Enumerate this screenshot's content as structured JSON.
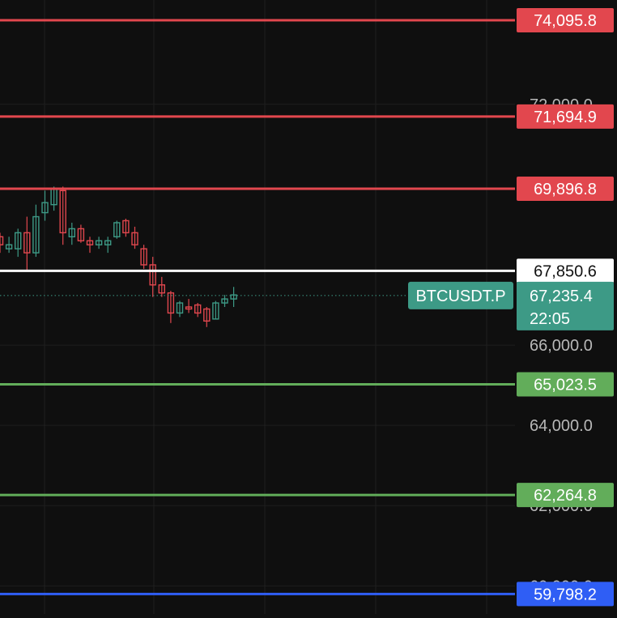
{
  "chart_data": {
    "type": "candlestick",
    "symbol": "BTCUSDT.P",
    "ylim": [
      59300,
      74600
    ],
    "grid": true,
    "y_ticks": [
      "72,000.0",
      "66,000.0",
      "64,000.0",
      "62,000.0",
      "60,000.0"
    ],
    "y_tick_values": [
      72000,
      66000,
      64000,
      62000,
      60000
    ],
    "last_price": "67,235.4",
    "last_price_value": 67235.4,
    "countdown": "22:05",
    "levels": [
      {
        "label": "74,095.8",
        "value": 74095.8,
        "color": "#e2474e",
        "text_color": "#ffffff"
      },
      {
        "label": "71,694.9",
        "value": 71694.9,
        "color": "#e2474e",
        "text_color": "#ffffff"
      },
      {
        "label": "69,896.8",
        "value": 69896.8,
        "color": "#e2474e",
        "text_color": "#ffffff"
      },
      {
        "label": "67,850.6",
        "value": 67850.6,
        "color": "#ffffff",
        "text_color": "#111111"
      },
      {
        "label": "65,023.5",
        "value": 65023.5,
        "color": "#62ad5a",
        "text_color": "#ffffff"
      },
      {
        "label": "62,264.8",
        "value": 62264.8,
        "color": "#62ad5a",
        "text_color": "#ffffff"
      },
      {
        "label": "59,798.2",
        "value": 59798.2,
        "color": "#2f5ef5",
        "text_color": "#ffffff"
      }
    ],
    "candles": [
      {
        "o": 68700,
        "h": 68800,
        "l": 68300,
        "c": 68500
      },
      {
        "o": 68400,
        "h": 68700,
        "l": 68300,
        "c": 68500
      },
      {
        "o": 68400,
        "h": 68900,
        "l": 68200,
        "c": 68800
      },
      {
        "o": 68800,
        "h": 69200,
        "l": 67850,
        "c": 68300
      },
      {
        "o": 68300,
        "h": 69500,
        "l": 68200,
        "c": 69200
      },
      {
        "o": 69300,
        "h": 69850,
        "l": 69100,
        "c": 69550
      },
      {
        "o": 69500,
        "h": 69950,
        "l": 69350,
        "c": 69900
      },
      {
        "o": 69850,
        "h": 69950,
        "l": 68500,
        "c": 68800
      },
      {
        "o": 68700,
        "h": 69050,
        "l": 68500,
        "c": 68900
      },
      {
        "o": 68900,
        "h": 69000,
        "l": 68550,
        "c": 68600
      },
      {
        "o": 68600,
        "h": 68700,
        "l": 68300,
        "c": 68500
      },
      {
        "o": 68500,
        "h": 68700,
        "l": 68400,
        "c": 68600
      },
      {
        "o": 68500,
        "h": 68700,
        "l": 68300,
        "c": 68600
      },
      {
        "o": 68700,
        "h": 69100,
        "l": 68650,
        "c": 69050
      },
      {
        "o": 69100,
        "h": 69150,
        "l": 68700,
        "c": 68800
      },
      {
        "o": 68800,
        "h": 68950,
        "l": 68400,
        "c": 68500
      },
      {
        "o": 68400,
        "h": 68500,
        "l": 67900,
        "c": 68000
      },
      {
        "o": 68000,
        "h": 68200,
        "l": 67200,
        "c": 67500
      },
      {
        "o": 67500,
        "h": 67700,
        "l": 67200,
        "c": 67300
      },
      {
        "o": 67300,
        "h": 67350,
        "l": 66550,
        "c": 66800
      },
      {
        "o": 66800,
        "h": 67100,
        "l": 66700,
        "c": 67050
      },
      {
        "o": 66950,
        "h": 67150,
        "l": 66800,
        "c": 66900
      },
      {
        "o": 67000,
        "h": 67050,
        "l": 66700,
        "c": 66800
      },
      {
        "o": 66900,
        "h": 66950,
        "l": 66450,
        "c": 66600
      },
      {
        "o": 66650,
        "h": 67100,
        "l": 66650,
        "c": 67050
      },
      {
        "o": 67050,
        "h": 67250,
        "l": 66950,
        "c": 67150
      },
      {
        "o": 67150,
        "h": 67450,
        "l": 66950,
        "c": 67250
      }
    ]
  }
}
